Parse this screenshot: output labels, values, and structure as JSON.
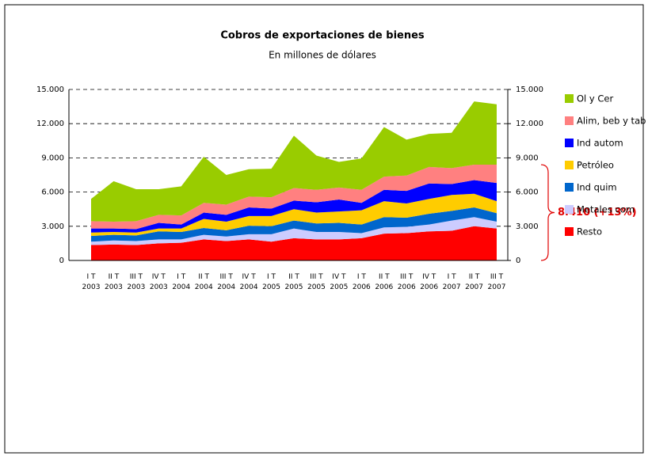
{
  "chart_data": {
    "type": "stacked_area",
    "title": "Cobros de exportaciones de bienes",
    "subtitle": "En millones de dólares",
    "categories": [
      "I T 2003",
      "II T 2003",
      "III T 2003",
      "IV T 2003",
      "I T 2004",
      "II T 2004",
      "III T 2004",
      "IV T 2004",
      "I T 2005",
      "II T 2005",
      "III T 2005",
      "IV T 2005",
      "I T 2006",
      "II T 2006",
      "III T 2006",
      "IV T 2006",
      "I T 2007",
      "II T 2007",
      "III T 2007"
    ],
    "series": [
      {
        "name": "Resto",
        "color": "#ff0000",
        "values": [
          1350,
          1400,
          1350,
          1500,
          1550,
          1850,
          1700,
          1850,
          1650,
          1950,
          1850,
          1850,
          1950,
          2350,
          2400,
          2550,
          2600,
          3000,
          2800
        ]
      },
      {
        "name": "Metales com",
        "color": "#ccccff",
        "values": [
          300,
          350,
          350,
          350,
          300,
          400,
          400,
          450,
          650,
          850,
          650,
          650,
          450,
          550,
          550,
          600,
          900,
          800,
          600
        ]
      },
      {
        "name": "Ind quim",
        "color": "#0066cc",
        "values": [
          500,
          500,
          500,
          700,
          650,
          600,
          550,
          750,
          700,
          700,
          750,
          800,
          750,
          900,
          800,
          950,
          850,
          850,
          750
        ]
      },
      {
        "name": "Petróleo",
        "color": "#ffcc00",
        "values": [
          300,
          250,
          250,
          250,
          300,
          800,
          750,
          850,
          900,
          1000,
          950,
          1000,
          1250,
          1400,
          1250,
          1300,
          1400,
          1200,
          1050
        ]
      },
      {
        "name": "Ind autom",
        "color": "#0000ff",
        "values": [
          350,
          300,
          300,
          500,
          350,
          550,
          600,
          750,
          650,
          750,
          900,
          1050,
          650,
          1000,
          1100,
          1350,
          950,
          1200,
          1600
        ]
      },
      {
        "name": "Alim, beb y tab",
        "color": "#ff8080",
        "values": [
          650,
          600,
          700,
          700,
          800,
          850,
          900,
          950,
          1000,
          1100,
          1100,
          1050,
          1150,
          1150,
          1350,
          1450,
          1400,
          1350,
          1600
        ]
      },
      {
        "name": "Ol y Cer",
        "color": "#99cc00",
        "values": [
          1950,
          3550,
          2800,
          2250,
          2550,
          4050,
          2600,
          2400,
          2500,
          4600,
          3000,
          2250,
          2750,
          4350,
          3150,
          2900,
          3100,
          5550,
          5300
        ]
      }
    ],
    "ylim": [
      0,
      15000
    ],
    "yticks": [
      0,
      {
        "value": 3000,
        "label": "3.000"
      },
      {
        "value": 6000,
        "label": "6.000"
      },
      {
        "value": 9000,
        "label": "9.000"
      },
      {
        "value": 12000,
        "label": "12.000"
      },
      {
        "value": 15000,
        "label": "15.000"
      }
    ],
    "y2lim": [
      0,
      15000
    ],
    "y2ticks": [
      0,
      {
        "value": 3000,
        "label": "3.000"
      },
      {
        "value": 6000,
        "label": "6.000"
      },
      {
        "value": 9000,
        "label": "9.000"
      },
      {
        "value": 12000,
        "label": "12.000"
      },
      {
        "value": 15000,
        "label": "15.000"
      }
    ],
    "grid": true,
    "annotation": "8.410 (+13%)"
  }
}
